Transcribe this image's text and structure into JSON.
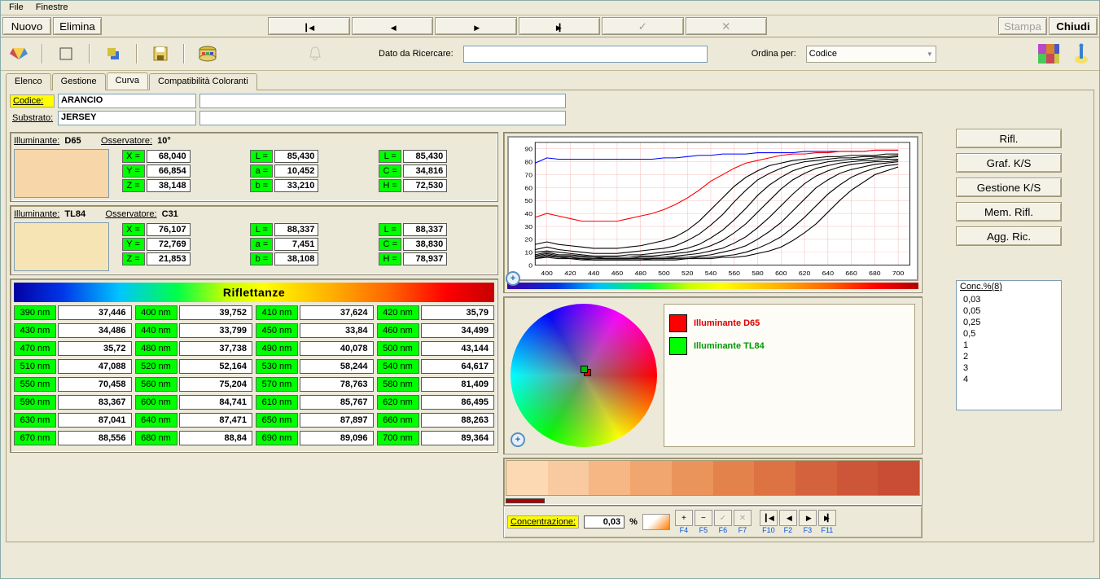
{
  "menu": {
    "file": "File",
    "windows": "Finestre"
  },
  "topbar": {
    "nuovo": "Nuovo",
    "elimina": "Elimina",
    "stampa": "Stampa",
    "chiudi": "Chiudi"
  },
  "search": {
    "label": "Dato da Ricercare:",
    "value": ""
  },
  "order": {
    "label": "Ordina per:",
    "value": "Codice"
  },
  "tabs": {
    "elenco": "Elenco",
    "gestione": "Gestione",
    "curva": "Curva",
    "compat": "Compatibilità Coloranti"
  },
  "labels": {
    "codice": "Codice:",
    "substrato": "Substrato:",
    "illuminante": "Illuminante:",
    "osservatore": "Osservatore:",
    "riflettanze": "Riflettanze",
    "concentrazione": "Concentrazione:",
    "conc_header": "Conc.%(8)"
  },
  "codice_val": "ARANCIO",
  "substrato_val": "JERSEY",
  "ill1": {
    "name": "D65",
    "oss": "10°",
    "swatch": "#f7d6aa",
    "X": "68,040",
    "Y": "66,854",
    "Z": "38,148",
    "L": "85,430",
    "a": "10,452",
    "b": "33,210",
    "L2": "85,430",
    "C": "34,816",
    "H": "72,530"
  },
  "ill2": {
    "name": "TL84",
    "oss": "C31",
    "swatch": "#f7e4b4",
    "X": "76,107",
    "Y": "72,769",
    "Z": "21,853",
    "L": "88,337",
    "a": "7,451",
    "b": "38,108",
    "L2": "88,337",
    "C": "38,830",
    "H": "78,937"
  },
  "refl_labels": {
    "X": "X =",
    "Y": "Y =",
    "Z": "Z =",
    "L": "L =",
    "a": "a =",
    "b": "b =",
    "C": "C =",
    "H": "H ="
  },
  "reflectances": [
    [
      [
        "390 nm",
        "37,446"
      ],
      [
        "400 nm",
        "39,752"
      ],
      [
        "410 nm",
        "37,624"
      ],
      [
        "420 nm",
        "35,79"
      ]
    ],
    [
      [
        "430 nm",
        "34,486"
      ],
      [
        "440 nm",
        "33,799"
      ],
      [
        "450 nm",
        "33,84"
      ],
      [
        "460 nm",
        "34,499"
      ]
    ],
    [
      [
        "470 nm",
        "35,72"
      ],
      [
        "480 nm",
        "37,738"
      ],
      [
        "490 nm",
        "40,078"
      ],
      [
        "500 nm",
        "43,144"
      ]
    ],
    [
      [
        "510 nm",
        "47,088"
      ],
      [
        "520 nm",
        "52,164"
      ],
      [
        "530 nm",
        "58,244"
      ],
      [
        "540 nm",
        "64,617"
      ]
    ],
    [
      [
        "550 nm",
        "70,458"
      ],
      [
        "560 nm",
        "75,204"
      ],
      [
        "570 nm",
        "78,763"
      ],
      [
        "580 nm",
        "81,409"
      ]
    ],
    [
      [
        "590 nm",
        "83,367"
      ],
      [
        "600 nm",
        "84,741"
      ],
      [
        "610 nm",
        "85,767"
      ],
      [
        "620 nm",
        "86,495"
      ]
    ],
    [
      [
        "630 nm",
        "87,041"
      ],
      [
        "640 nm",
        "87,471"
      ],
      [
        "650 nm",
        "87,897"
      ],
      [
        "660 nm",
        "88,263"
      ]
    ],
    [
      [
        "670 nm",
        "88,556"
      ],
      [
        "680 nm",
        "88,84"
      ],
      [
        "690 nm",
        "89,096"
      ],
      [
        "700 nm",
        "89,364"
      ]
    ]
  ],
  "chart": {
    "xticks": [
      400,
      420,
      440,
      460,
      480,
      500,
      520,
      540,
      560,
      580,
      600,
      620,
      640,
      660,
      680,
      700
    ],
    "yticks": [
      0,
      10,
      20,
      30,
      40,
      50,
      60,
      70,
      80,
      90
    ],
    "ylim": [
      0,
      95
    ],
    "xlim": [
      390,
      710
    ],
    "grid_color": "#f4bfbf",
    "curves": {
      "blue": {
        "color": "#0000ff",
        "data": [
          79,
          83,
          82,
          82,
          82,
          82,
          82,
          82,
          82,
          82,
          82,
          83,
          83,
          84,
          85,
          85,
          86,
          86,
          86,
          87,
          87,
          87,
          87,
          88,
          88,
          88,
          88,
          88,
          88,
          89,
          89,
          89
        ]
      },
      "red": {
        "color": "#ff0000",
        "data": [
          37,
          40,
          38,
          36,
          34,
          34,
          34,
          34,
          36,
          38,
          40,
          43,
          47,
          52,
          58,
          65,
          70,
          75,
          79,
          81,
          83,
          85,
          86,
          86,
          87,
          87,
          88,
          88,
          88,
          89,
          89,
          89
        ]
      },
      "c1": {
        "color": "#000000",
        "data": [
          16,
          18,
          16,
          15,
          14,
          13,
          13,
          13,
          14,
          15,
          17,
          19,
          22,
          27,
          34,
          43,
          52,
          61,
          68,
          73,
          77,
          79,
          81,
          82,
          83,
          84,
          84,
          85,
          85,
          85,
          86,
          86
        ]
      },
      "c2": {
        "color": "#000000",
        "data": [
          12,
          14,
          12,
          11,
          10,
          9,
          9,
          9,
          10,
          11,
          12,
          13,
          15,
          19,
          24,
          31,
          39,
          49,
          58,
          66,
          71,
          75,
          78,
          80,
          81,
          82,
          83,
          83,
          84,
          84,
          84,
          85
        ]
      },
      "c3": {
        "color": "#000000",
        "data": [
          10,
          11,
          10,
          9,
          8,
          7,
          7,
          7,
          8,
          8,
          9,
          10,
          11,
          13,
          16,
          21,
          27,
          35,
          44,
          54,
          62,
          68,
          73,
          76,
          78,
          80,
          81,
          82,
          82,
          83,
          83,
          84
        ]
      },
      "c4": {
        "color": "#000000",
        "data": [
          8,
          10,
          8,
          8,
          7,
          6,
          6,
          6,
          6,
          7,
          7,
          8,
          9,
          10,
          12,
          15,
          19,
          25,
          32,
          41,
          50,
          59,
          66,
          71,
          75,
          77,
          79,
          80,
          81,
          81,
          82,
          82
        ]
      },
      "c5": {
        "color": "#000000",
        "data": [
          7,
          9,
          7,
          7,
          6,
          6,
          5,
          5,
          5,
          6,
          6,
          6,
          7,
          8,
          9,
          11,
          13,
          17,
          22,
          29,
          37,
          46,
          55,
          63,
          69,
          73,
          76,
          78,
          79,
          80,
          80,
          81
        ]
      },
      "c6": {
        "color": "#000000",
        "data": [
          6,
          8,
          6,
          6,
          5,
          5,
          5,
          5,
          5,
          5,
          5,
          5,
          6,
          6,
          7,
          8,
          10,
          12,
          15,
          20,
          26,
          33,
          42,
          51,
          60,
          66,
          71,
          74,
          76,
          78,
          79,
          80
        ]
      },
      "c7": {
        "color": "#000000",
        "data": [
          5,
          7,
          6,
          5,
          5,
          4,
          4,
          4,
          4,
          4,
          5,
          5,
          5,
          5,
          6,
          6,
          7,
          8,
          10,
          13,
          17,
          22,
          29,
          37,
          46,
          55,
          62,
          68,
          72,
          75,
          77,
          78
        ]
      },
      "c8": {
        "color": "#000000",
        "data": [
          5,
          6,
          5,
          5,
          4,
          4,
          4,
          4,
          4,
          4,
          4,
          4,
          4,
          5,
          5,
          5,
          6,
          6,
          7,
          9,
          11,
          14,
          19,
          25,
          32,
          41,
          50,
          58,
          64,
          70,
          73,
          76
        ]
      }
    }
  },
  "swatches": [
    "#fcd9b2",
    "#f9caa0",
    "#f6b785",
    "#f0a66e",
    "#ea945b",
    "#e4824c",
    "#dd7242",
    "#d4623c",
    "#cd5638",
    "#c84d34"
  ],
  "conc_val": "0,03",
  "conc_unit": "%",
  "fkeys": [
    "F4",
    "F5",
    "F6",
    "F7",
    "F10",
    "F2",
    "F3",
    "F11"
  ],
  "legend": {
    "d65": "Illuminante  D65",
    "tl84": "Illuminante  TL84"
  },
  "rbuttons": {
    "rifl": "Rifl.",
    "graf": "Graf. K/S",
    "gest": "Gestione K/S",
    "mem": "Mem. Rifl.",
    "agg": "Agg. Ric."
  },
  "conc_list": [
    "0,03",
    "0,05",
    "0,25",
    "0,5",
    "1",
    "2",
    "3",
    "4"
  ]
}
